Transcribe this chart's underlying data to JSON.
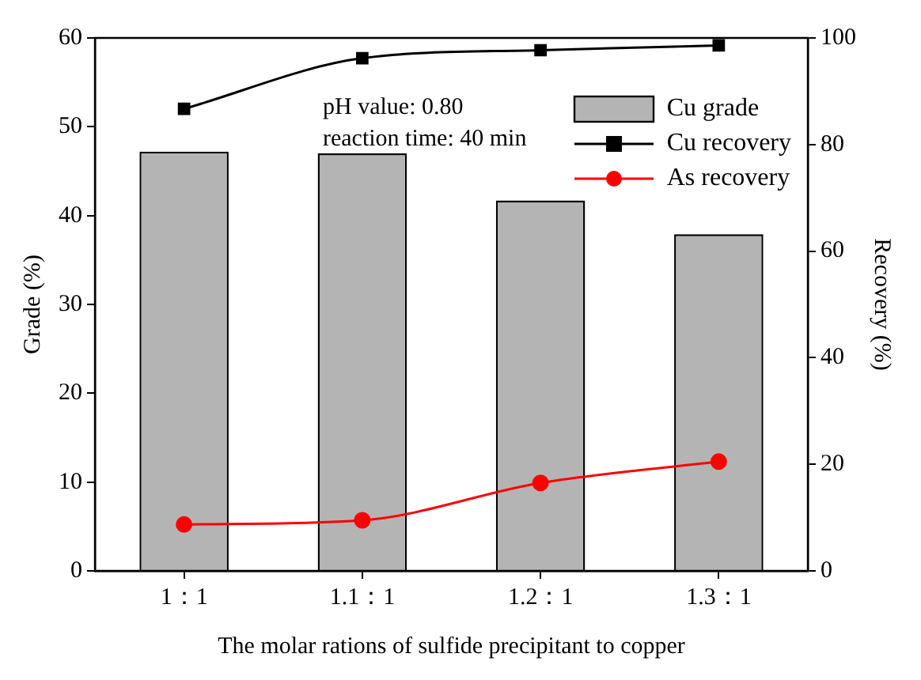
{
  "chart_data": {
    "type": "bar",
    "xlabel": "The molar rations of sulfide precipitant to copper",
    "ylabel": "Grade (%)",
    "y2label": "Recovery (%)",
    "categories": [
      "1：1",
      "1.1：1",
      "1.2：1",
      "1.3：1"
    ],
    "series": [
      {
        "name": "Cu grade",
        "color": "#b4b4b4",
        "values": [
          47.2,
          47.0,
          41.7,
          37.9
        ]
      },
      {
        "name": "Cu recovery",
        "type": "line",
        "axis": "y2",
        "color": "#000000",
        "marker": "square",
        "values": [
          86.7,
          96.2,
          97.7,
          98.6
        ]
      },
      {
        "name": "As recovery",
        "type": "line",
        "axis": "y2",
        "color": "#ff0000",
        "marker": "circle",
        "values": [
          8.7,
          9.5,
          16.5,
          20.5
        ]
      }
    ],
    "ylim": [
      0,
      60
    ],
    "yticks": [
      0,
      10,
      20,
      30,
      40,
      50,
      60
    ],
    "y2lim": [
      0,
      100
    ],
    "y2ticks": [
      0,
      20,
      40,
      60,
      80,
      100
    ],
    "annotations": [
      "pH value: 0.80",
      "reaction time: 40 min"
    ],
    "grid": false,
    "legend": "top right"
  }
}
